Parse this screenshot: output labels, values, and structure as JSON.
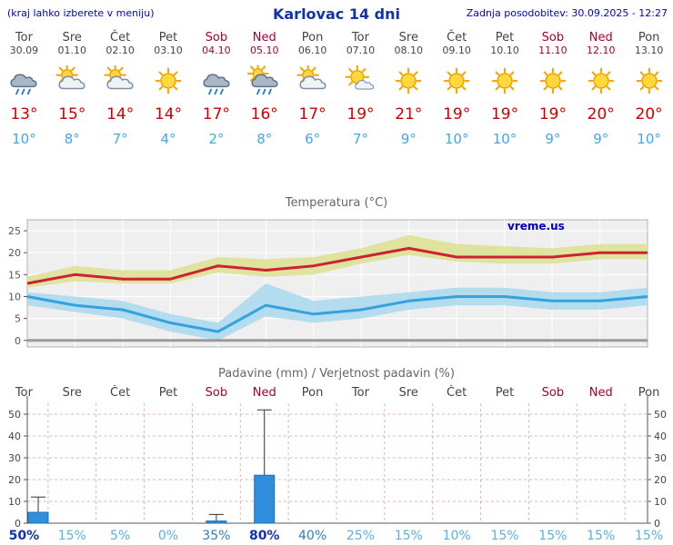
{
  "header": {
    "left_note": "(kraj lahko izberete v meniju)",
    "title": "Karlovac 14 dni",
    "updated": "Zadnja posodobitev: 30.09.2025 - 12:27"
  },
  "colors": {
    "header_blue": "#0000cc",
    "title_blue": "#1133aa",
    "day_normal": "#444444",
    "day_weekend": "#a80033",
    "temp_high": "#cc0000",
    "temp_low": "#44a8dd",
    "chart_bg": "#efefef",
    "max_line": "#cc2233",
    "max_band": "#dde08e",
    "min_line": "#33a2dd",
    "min_band": "#a8d8ee",
    "bar_fill": "#2f8fdd",
    "bar_border": "#1b6fb8",
    "grid_pink": "#e8b0b0",
    "pct_low": "#5bb0dd",
    "pct_mid": "#2e7fc2",
    "pct_high": "#1133aa",
    "watermark_blue": "#0000bb"
  },
  "forecast": {
    "days": [
      {
        "name": "Tor",
        "date": "30.09",
        "icon": "rain",
        "high": "13°",
        "low": "10°",
        "weekend": false
      },
      {
        "name": "Sre",
        "date": "01.10",
        "icon": "partly-cloudy",
        "high": "15°",
        "low": "8°",
        "weekend": false
      },
      {
        "name": "Čet",
        "date": "02.10",
        "icon": "partly-cloudy",
        "high": "14°",
        "low": "7°",
        "weekend": false
      },
      {
        "name": "Pet",
        "date": "03.10",
        "icon": "sunny",
        "high": "14°",
        "low": "4°",
        "weekend": false
      },
      {
        "name": "Sob",
        "date": "04.10",
        "icon": "rain",
        "high": "17°",
        "low": "2°",
        "weekend": true
      },
      {
        "name": "Ned",
        "date": "05.10",
        "icon": "sun-shower",
        "high": "16°",
        "low": "8°",
        "weekend": true
      },
      {
        "name": "Pon",
        "date": "06.10",
        "icon": "partly-cloudy",
        "high": "17°",
        "low": "6°",
        "weekend": false
      },
      {
        "name": "Tor",
        "date": "07.10",
        "icon": "mostly-sunny",
        "high": "19°",
        "low": "7°",
        "weekend": false
      },
      {
        "name": "Sre",
        "date": "08.10",
        "icon": "sunny",
        "high": "21°",
        "low": "9°",
        "weekend": false
      },
      {
        "name": "Čet",
        "date": "09.10",
        "icon": "sunny",
        "high": "19°",
        "low": "10°",
        "weekend": false
      },
      {
        "name": "Pet",
        "date": "10.10",
        "icon": "sunny",
        "high": "19°",
        "low": "10°",
        "weekend": false
      },
      {
        "name": "Sob",
        "date": "11.10",
        "icon": "sunny",
        "high": "19°",
        "low": "9°",
        "weekend": true
      },
      {
        "name": "Ned",
        "date": "12.10",
        "icon": "sunny",
        "high": "20°",
        "low": "9°",
        "weekend": true
      },
      {
        "name": "Pon",
        "date": "13.10",
        "icon": "sunny",
        "high": "20°",
        "low": "10°",
        "weekend": false
      }
    ]
  },
  "chart_data": [
    {
      "type": "line",
      "title": "Temperatura (°C)",
      "watermark": "vreme.us",
      "categories": [
        "Tor",
        "Sre",
        "Čet",
        "Pet",
        "Sob",
        "Ned",
        "Pon",
        "Tor",
        "Sre",
        "Čet",
        "Pet",
        "Sob",
        "Ned",
        "Pon"
      ],
      "ylim": [
        -1.5,
        27.5
      ],
      "yticks": [
        0,
        5,
        10,
        15,
        20,
        25
      ],
      "series": [
        {
          "name": "max",
          "values": [
            13,
            15,
            14,
            14,
            17,
            16,
            17,
            19,
            21,
            19,
            19,
            19,
            20,
            20
          ],
          "band_upper": [
            14.5,
            17,
            16,
            16,
            19,
            18.5,
            19,
            21,
            24,
            22,
            21.5,
            21,
            22,
            22
          ],
          "band_lower": [
            12,
            13.5,
            13,
            13,
            15.5,
            14.5,
            15,
            17.5,
            19.5,
            18,
            17.5,
            17.5,
            18.5,
            18.5
          ]
        },
        {
          "name": "min",
          "values": [
            10,
            8,
            7,
            4,
            2,
            8,
            6,
            7,
            9,
            10,
            10,
            9,
            9,
            10
          ],
          "band_upper": [
            11,
            10,
            9,
            6,
            4,
            13,
            9,
            10,
            11,
            12,
            12,
            11,
            11,
            12
          ],
          "band_lower": [
            8,
            6.5,
            5,
            2,
            0,
            5.5,
            4,
            5,
            7,
            8,
            8,
            7,
            7,
            8
          ]
        }
      ]
    },
    {
      "type": "bar",
      "title": "Padavine (mm) / Verjetnost padavin (%)",
      "categories": [
        "Tor",
        "Sre",
        "Čet",
        "Pet",
        "Sob",
        "Ned",
        "Pon",
        "Tor",
        "Sre",
        "Čet",
        "Pet",
        "Sob",
        "Ned",
        "Pon"
      ],
      "weekend_flags": [
        false,
        false,
        false,
        false,
        true,
        true,
        false,
        false,
        false,
        false,
        false,
        true,
        true,
        false
      ],
      "values": [
        5,
        0,
        0,
        0,
        1,
        22,
        0,
        0,
        0,
        0,
        0,
        0,
        0,
        0
      ],
      "range_max": [
        12,
        0,
        0,
        0,
        4,
        52,
        0,
        0,
        0,
        0,
        0,
        0,
        0,
        0
      ],
      "probabilities": [
        50,
        15,
        5,
        0,
        35,
        80,
        40,
        25,
        15,
        10,
        15,
        15,
        15,
        15
      ],
      "ylim": [
        0,
        55
      ],
      "yticks": [
        0,
        10,
        20,
        30,
        40,
        50
      ]
    }
  ]
}
